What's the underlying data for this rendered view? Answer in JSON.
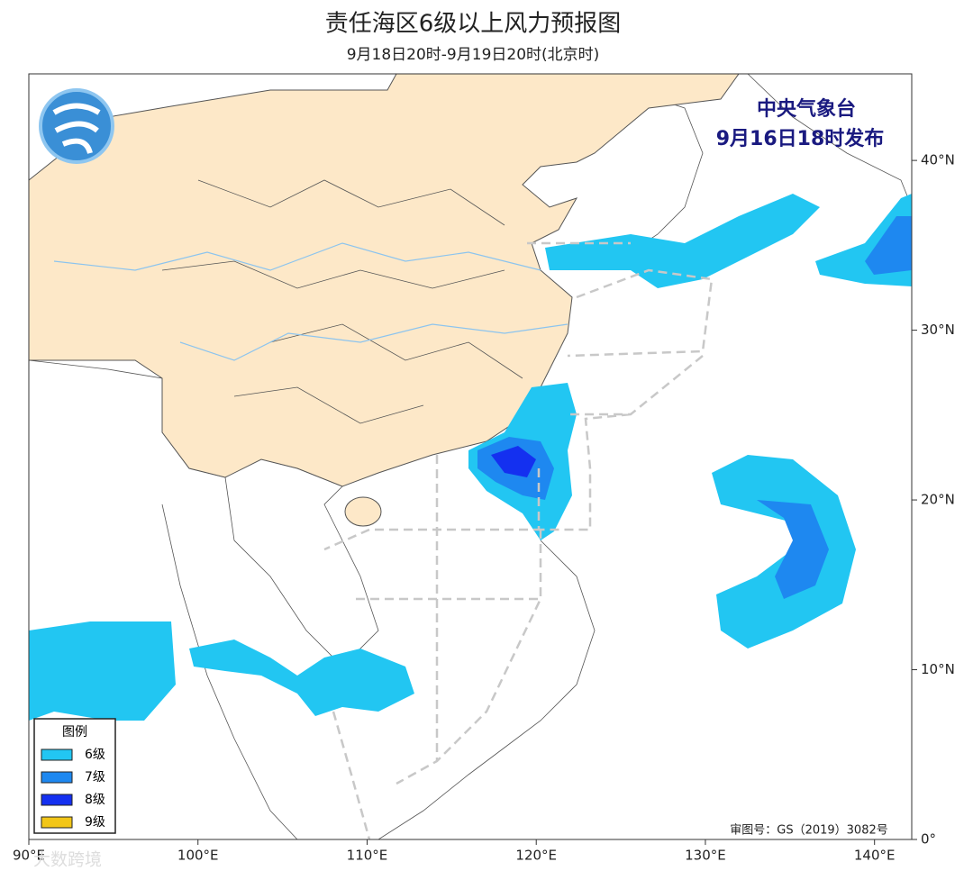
{
  "header": {
    "title": "责任海区6级以上风力预报图",
    "subtitle": "9月18日20时-9月19日20时(北京时)"
  },
  "issuer": {
    "name": "中央气象台",
    "time": "9月16日18时发布"
  },
  "legend": {
    "title": "图例",
    "items": [
      {
        "label": "6级",
        "color": "#22c6f2"
      },
      {
        "label": "7级",
        "color": "#1e88f0"
      },
      {
        "label": "8级",
        "color": "#1430f0"
      },
      {
        "label": "9级",
        "color": "#f2c618"
      }
    ]
  },
  "map": {
    "xlim": [
      90,
      142.2
    ],
    "ylim": [
      0,
      45.1
    ],
    "xticks": [
      {
        "value": 90,
        "label": "90°E"
      },
      {
        "value": 100,
        "label": "100°E"
      },
      {
        "value": 110,
        "label": "110°E"
      },
      {
        "value": 120,
        "label": "120°E"
      },
      {
        "value": 130,
        "label": "130°E"
      },
      {
        "value": 140,
        "label": "140°E"
      }
    ],
    "yticks": [
      {
        "value": 0,
        "label": "0°"
      },
      {
        "value": 10,
        "label": "10°N"
      },
      {
        "value": 20,
        "label": "20°N"
      },
      {
        "value": 30,
        "label": "30°N"
      },
      {
        "value": 40,
        "label": "40°N"
      }
    ]
  },
  "footer": {
    "review_number": "审图号：GS（2019）3082号",
    "watermark": "大数跨境"
  }
}
